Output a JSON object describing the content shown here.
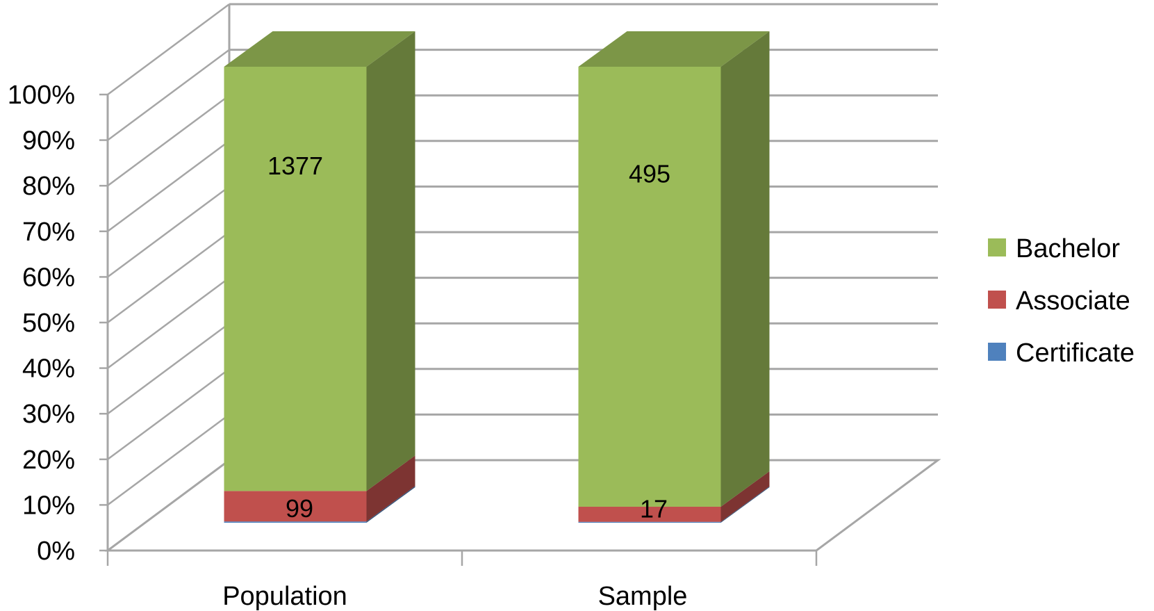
{
  "chart_data": {
    "type": "bar",
    "stacked": "percent",
    "three_d": true,
    "categories": [
      "Population",
      "Sample"
    ],
    "series": [
      {
        "name": "Certificate",
        "color": "#4F81BD",
        "values": [
          4,
          1
        ]
      },
      {
        "name": "Associate",
        "color": "#C0504D",
        "values": [
          99,
          17
        ]
      },
      {
        "name": "Bachelor",
        "color": "#9BBB59",
        "values": [
          1377,
          495
        ]
      }
    ],
    "data_labels": [
      {
        "series": "Associate",
        "values": [
          "99",
          "17"
        ]
      },
      {
        "series": "Bachelor",
        "values": [
          "1377",
          "495"
        ]
      }
    ],
    "y_ticks": [
      "0%",
      "10%",
      "20%",
      "30%",
      "40%",
      "50%",
      "60%",
      "70%",
      "80%",
      "90%",
      "100%"
    ],
    "ylim": [
      0,
      100
    ],
    "grid": true,
    "legend_position": "right",
    "legend_order": [
      "Bachelor",
      "Associate",
      "Certificate"
    ]
  }
}
